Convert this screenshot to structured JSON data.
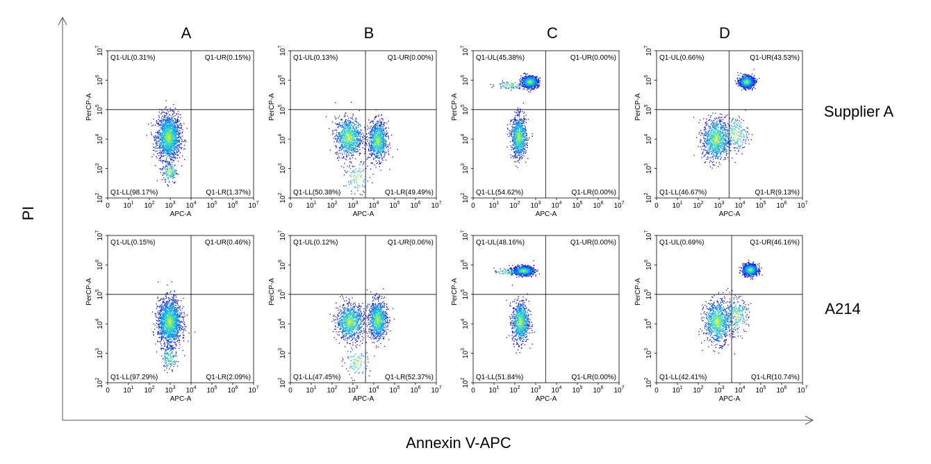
{
  "figure": {
    "y_axis_label": "PI",
    "x_axis_label": "Annexin V-APC",
    "column_headers": [
      "A",
      "B",
      "C",
      "D"
    ],
    "row_headers": [
      "Supplier A",
      "A214"
    ]
  },
  "chart_data": {
    "type": "scatter",
    "x_scale": "log",
    "y_scale": "log",
    "xlabel": "APC-A",
    "ylabel": "PerCP-A",
    "xlim": [
      0,
      10000000
    ],
    "ylim": [
      100,
      10000000
    ],
    "x_ticks": [
      "0",
      "10",
      "10",
      "10",
      "10",
      "10",
      "10",
      "10"
    ],
    "x_tick_exp": [
      "",
      "1",
      "2",
      "3",
      "4",
      "5",
      "6",
      "7"
    ],
    "y_ticks": [
      "10",
      "10",
      "10",
      "10",
      "10",
      "10"
    ],
    "y_tick_exp": [
      "2",
      "3",
      "4",
      "5",
      "6",
      "7"
    ],
    "colors": {
      "low": "#0000ff",
      "mid": "#00ffff",
      "high": "#ffff00"
    },
    "panels": [
      {
        "row": 0,
        "col": 0,
        "ul": "Q1-UL(0.31%)",
        "ur": "Q1-UR(0.15%)",
        "ll": "Q1-LL(98.17%)",
        "lr": "Q1-LR(1.37%)",
        "gate_x": 10000,
        "gate_y": 100000,
        "clusters": [
          {
            "x": 800,
            "y": 12000,
            "sx": 0.28,
            "sy": 0.38,
            "n": 1600
          },
          {
            "x": 900,
            "y": 800,
            "sx": 0.18,
            "sy": 0.2,
            "n": 150
          }
        ]
      },
      {
        "row": 0,
        "col": 1,
        "ul": "Q1-UL(0.13%)",
        "ur": "Q1-UR(0.00%)",
        "ll": "Q1-LL(50.38%)",
        "lr": "Q1-LR(49.49%)",
        "gate_x": 4000,
        "gate_y": 100000,
        "clusters": [
          {
            "x": 600,
            "y": 12000,
            "sx": 0.32,
            "sy": 0.33,
            "n": 900
          },
          {
            "x": 15000,
            "y": 9000,
            "sx": 0.22,
            "sy": 0.32,
            "n": 900
          },
          {
            "x": 1500,
            "y": 500,
            "sx": 0.3,
            "sy": 0.25,
            "n": 100
          }
        ]
      },
      {
        "row": 0,
        "col": 2,
        "ul": "Q1-UL(45.38%)",
        "ur": "Q1-UR(0.00%)",
        "ll": "Q1-LL(54.62%)",
        "lr": "Q1-LR(0.00%)",
        "gate_x": 3000,
        "gate_y": 100000,
        "clusters": [
          {
            "x": 500,
            "y": 900000,
            "sx": 0.2,
            "sy": 0.1,
            "n": 800
          },
          {
            "x": 150,
            "y": 12000,
            "sx": 0.18,
            "sy": 0.35,
            "n": 900
          },
          {
            "x": 60,
            "y": 700000,
            "sx": 0.35,
            "sy": 0.06,
            "n": 80
          }
        ]
      },
      {
        "row": 0,
        "col": 3,
        "ul": "Q1-UL(0.66%)",
        "ur": "Q1-UR(43.53%)",
        "ll": "Q1-LL(46.67%)",
        "lr": "Q1-LR(9.13%)",
        "gate_x": 3000,
        "gate_y": 100000,
        "clusters": [
          {
            "x": 20000,
            "y": 900000,
            "sx": 0.18,
            "sy": 0.1,
            "n": 800
          },
          {
            "x": 700,
            "y": 10000,
            "sx": 0.32,
            "sy": 0.36,
            "n": 900
          },
          {
            "x": 6000,
            "y": 15000,
            "sx": 0.3,
            "sy": 0.3,
            "n": 200
          }
        ]
      },
      {
        "row": 1,
        "col": 0,
        "ul": "Q1-UL(0.15%)",
        "ur": "Q1-UR(0.46%)",
        "ll": "Q1-LL(97.29%)",
        "lr": "Q1-LR(2.09%)",
        "gate_x": 10000,
        "gate_y": 100000,
        "clusters": [
          {
            "x": 900,
            "y": 12000,
            "sx": 0.28,
            "sy": 0.38,
            "n": 1600
          },
          {
            "x": 900,
            "y": 800,
            "sx": 0.18,
            "sy": 0.2,
            "n": 150
          }
        ]
      },
      {
        "row": 1,
        "col": 1,
        "ul": "Q1-UL(0.12%)",
        "ur": "Q1-UR(0.06%)",
        "ll": "Q1-LL(47.45%)",
        "lr": "Q1-LR(52.37%)",
        "gate_x": 4000,
        "gate_y": 100000,
        "clusters": [
          {
            "x": 700,
            "y": 12000,
            "sx": 0.32,
            "sy": 0.3,
            "n": 900
          },
          {
            "x": 15000,
            "y": 14000,
            "sx": 0.22,
            "sy": 0.32,
            "n": 950
          },
          {
            "x": 1500,
            "y": 500,
            "sx": 0.3,
            "sy": 0.25,
            "n": 100
          }
        ]
      },
      {
        "row": 1,
        "col": 2,
        "ul": "Q1-UL(48.16%)",
        "ur": "Q1-UR(0.00%)",
        "ll": "Q1-LL(51.84%)",
        "lr": "Q1-LR(0.00%)",
        "gate_x": 3000,
        "gate_y": 100000,
        "clusters": [
          {
            "x": 250,
            "y": 650000,
            "sx": 0.25,
            "sy": 0.08,
            "n": 850
          },
          {
            "x": 180,
            "y": 12000,
            "sx": 0.2,
            "sy": 0.35,
            "n": 850
          },
          {
            "x": 40,
            "y": 600000,
            "sx": 0.3,
            "sy": 0.06,
            "n": 80
          }
        ]
      },
      {
        "row": 1,
        "col": 3,
        "ul": "Q1-UL(0.69%)",
        "ur": "Q1-UR(46.16%)",
        "ll": "Q1-LL(42.41%)",
        "lr": "Q1-LR(10.74%)",
        "gate_x": 4000,
        "gate_y": 100000,
        "clusters": [
          {
            "x": 30000,
            "y": 700000,
            "sx": 0.18,
            "sy": 0.1,
            "n": 800
          },
          {
            "x": 800,
            "y": 12000,
            "sx": 0.32,
            "sy": 0.36,
            "n": 850
          },
          {
            "x": 6000,
            "y": 20000,
            "sx": 0.3,
            "sy": 0.3,
            "n": 250
          }
        ]
      }
    ]
  }
}
